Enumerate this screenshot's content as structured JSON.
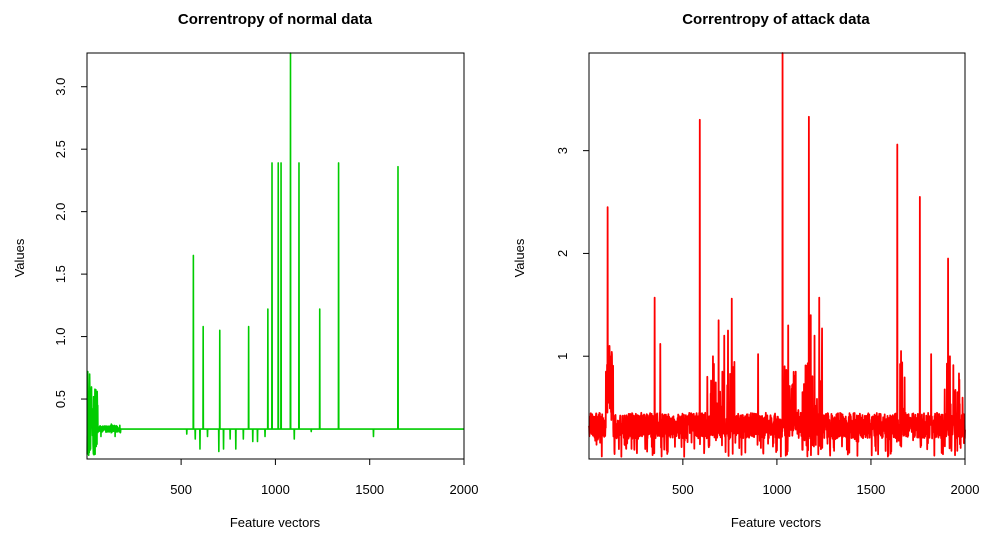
{
  "chart_data": [
    {
      "type": "line",
      "title": "Correntropy of normal data",
      "xlabel": "Feature vectors",
      "ylabel": "Values",
      "xlim": [
        1,
        2000
      ],
      "ylim": [
        0.02,
        3.27
      ],
      "xticks": [
        500,
        1000,
        1500,
        2000
      ],
      "yticks": [
        0.5,
        1.0,
        1.5,
        2.0,
        2.5,
        3.0
      ],
      "ytick_labels": [
        "0.5",
        "1.0",
        "1.5",
        "2.0",
        "2.5",
        "3.0"
      ],
      "color": "#00cc00",
      "baseline": 0.26,
      "spikes": [
        {
          "x": 565,
          "y": 1.65
        },
        {
          "x": 617,
          "y": 1.08
        },
        {
          "x": 705,
          "y": 1.05
        },
        {
          "x": 858,
          "y": 1.08
        },
        {
          "x": 960,
          "y": 1.22
        },
        {
          "x": 982,
          "y": 2.39
        },
        {
          "x": 1015,
          "y": 2.39
        },
        {
          "x": 1030,
          "y": 2.39
        },
        {
          "x": 1080,
          "y": 3.27
        },
        {
          "x": 1125,
          "y": 2.39
        },
        {
          "x": 1235,
          "y": 1.22
        },
        {
          "x": 1335,
          "y": 2.39
        },
        {
          "x": 1650,
          "y": 2.36
        }
      ],
      "dips": [
        {
          "x": 530,
          "y": 0.22
        },
        {
          "x": 575,
          "y": 0.18
        },
        {
          "x": 600,
          "y": 0.1
        },
        {
          "x": 640,
          "y": 0.2
        },
        {
          "x": 700,
          "y": 0.08
        },
        {
          "x": 725,
          "y": 0.1
        },
        {
          "x": 760,
          "y": 0.18
        },
        {
          "x": 790,
          "y": 0.1
        },
        {
          "x": 830,
          "y": 0.18
        },
        {
          "x": 880,
          "y": 0.16
        },
        {
          "x": 905,
          "y": 0.16
        },
        {
          "x": 945,
          "y": 0.2
        },
        {
          "x": 1100,
          "y": 0.18
        },
        {
          "x": 1190,
          "y": 0.24
        },
        {
          "x": 1520,
          "y": 0.2
        }
      ],
      "start_noise": [
        {
          "x": 5,
          "y": 0.72
        },
        {
          "x": 10,
          "y": 0.05
        },
        {
          "x": 15,
          "y": 0.7
        },
        {
          "x": 20,
          "y": 0.1
        },
        {
          "x": 28,
          "y": 0.4
        },
        {
          "x": 35,
          "y": 0.06
        },
        {
          "x": 42,
          "y": 0.3
        },
        {
          "x": 50,
          "y": 0.12
        },
        {
          "x": 60,
          "y": 0.28
        },
        {
          "x": 75,
          "y": 0.2
        },
        {
          "x": 90,
          "y": 0.27
        },
        {
          "x": 130,
          "y": 0.3
        },
        {
          "x": 150,
          "y": 0.2
        },
        {
          "x": 175,
          "y": 0.29
        }
      ]
    },
    {
      "type": "line",
      "title": "Correntropy of attack data",
      "xlabel": "Feature vectors",
      "ylabel": "Values",
      "xlim": [
        1,
        2000
      ],
      "ylim": [
        0.0,
        3.95
      ],
      "xticks": [
        500,
        1000,
        1500,
        2000
      ],
      "yticks": [
        1,
        2,
        3
      ],
      "ytick_labels": [
        "1",
        "2",
        "3"
      ],
      "color": "#ff0000",
      "baseline": 0.4,
      "noise_low": 0.2,
      "noise_high": 0.45,
      "spikes": [
        {
          "x": 100,
          "y": 2.45
        },
        {
          "x": 110,
          "y": 1.1
        },
        {
          "x": 350,
          "y": 1.57
        },
        {
          "x": 380,
          "y": 1.12
        },
        {
          "x": 590,
          "y": 3.3
        },
        {
          "x": 630,
          "y": 0.8
        },
        {
          "x": 660,
          "y": 1.0
        },
        {
          "x": 690,
          "y": 1.35
        },
        {
          "x": 720,
          "y": 1.2
        },
        {
          "x": 740,
          "y": 1.25
        },
        {
          "x": 760,
          "y": 1.56
        },
        {
          "x": 900,
          "y": 1.02
        },
        {
          "x": 1030,
          "y": 3.95
        },
        {
          "x": 1060,
          "y": 1.3
        },
        {
          "x": 1100,
          "y": 0.85
        },
        {
          "x": 1170,
          "y": 3.33
        },
        {
          "x": 1180,
          "y": 1.4
        },
        {
          "x": 1200,
          "y": 1.2
        },
        {
          "x": 1225,
          "y": 1.57
        },
        {
          "x": 1240,
          "y": 1.27
        },
        {
          "x": 1640,
          "y": 3.06
        },
        {
          "x": 1660,
          "y": 1.05
        },
        {
          "x": 1760,
          "y": 2.55
        },
        {
          "x": 1820,
          "y": 1.02
        },
        {
          "x": 1910,
          "y": 1.95
        },
        {
          "x": 1920,
          "y": 1.0
        },
        {
          "x": 1960,
          "y": 0.65
        }
      ]
    }
  ]
}
